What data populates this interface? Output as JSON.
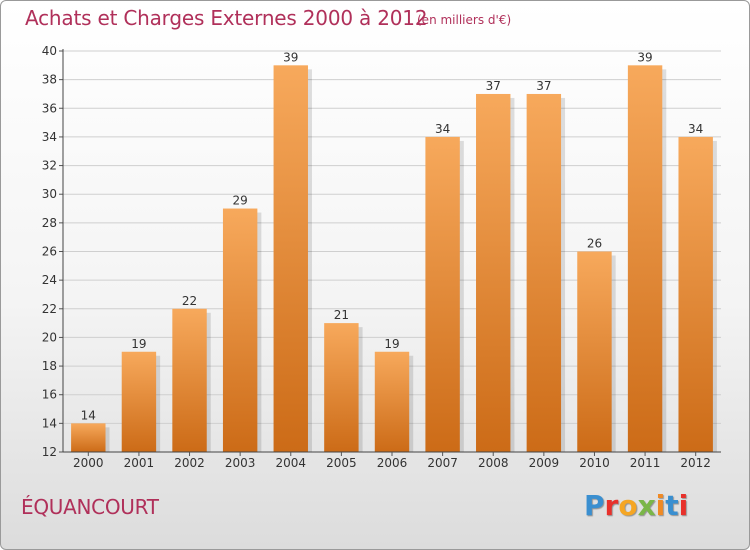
{
  "header": {
    "title": "Achats et Charges Externes 2000 à 2012",
    "unit": "(en milliers d'€)"
  },
  "footer": {
    "commune": "ÉQUANCOURT",
    "logo": "Proxiti",
    "logo_colors": [
      "#3a8fd0",
      "#e8312b",
      "#f5a623",
      "#7ab648",
      "#f08a24",
      "#3a8fd0",
      "#e8312b"
    ]
  },
  "colors": {
    "bar_light": "#f7a95c",
    "bar_dark": "#cc6b17",
    "text": "#b0305a",
    "axis": "#333333"
  },
  "chart_data": {
    "type": "bar",
    "title": "Achats et Charges Externes 2000 à 2012",
    "subtitle": "(en milliers d'€)",
    "categories": [
      "2000",
      "2001",
      "2002",
      "2003",
      "2004",
      "2005",
      "2006",
      "2007",
      "2008",
      "2009",
      "2010",
      "2011",
      "2012"
    ],
    "values": [
      14,
      19,
      22,
      29,
      39,
      21,
      19,
      34,
      37,
      37,
      26,
      39,
      34
    ],
    "ylim": [
      12,
      40
    ],
    "yticks": [
      12,
      14,
      16,
      18,
      20,
      22,
      24,
      26,
      28,
      30,
      32,
      34,
      36,
      38,
      40
    ],
    "grid": true,
    "data_labels": true,
    "xlabel": "",
    "ylabel": ""
  }
}
